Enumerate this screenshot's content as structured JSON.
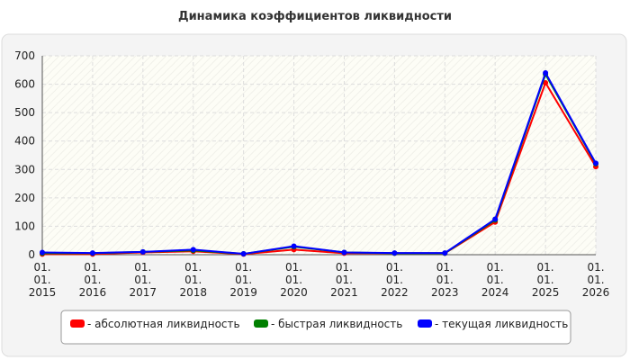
{
  "chart_data": {
    "type": "line",
    "title": "Динамика коэффициентов ликвидности",
    "categories": [
      "01.01.2015",
      "01.01.2016",
      "01.01.2017",
      "01.01.2018",
      "01.01.2019",
      "01.01.2020",
      "01.01.2021",
      "01.01.2022",
      "01.01.2023",
      "01.01.2024",
      "01.01.2025",
      "01.01.2026"
    ],
    "series": [
      {
        "name": "- абсолютная ликвидность",
        "color": "#ff0000",
        "values": [
          2,
          2,
          8,
          12,
          2,
          18,
          5,
          5,
          5,
          115,
          605,
          310
        ]
      },
      {
        "name": "- быстрая ликвидность",
        "color": "#008000",
        "values": [
          5,
          5,
          10,
          15,
          3,
          28,
          8,
          5,
          5,
          122,
          635,
          320
        ]
      },
      {
        "name": "- текущая ликвидность",
        "color": "#0000ff",
        "values": [
          8,
          6,
          10,
          18,
          3,
          30,
          8,
          6,
          6,
          125,
          640,
          322
        ]
      }
    ],
    "ylim": [
      0,
      700
    ],
    "yticks": [
      0,
      100,
      200,
      300,
      400,
      500,
      600,
      700
    ],
    "grid": true
  }
}
